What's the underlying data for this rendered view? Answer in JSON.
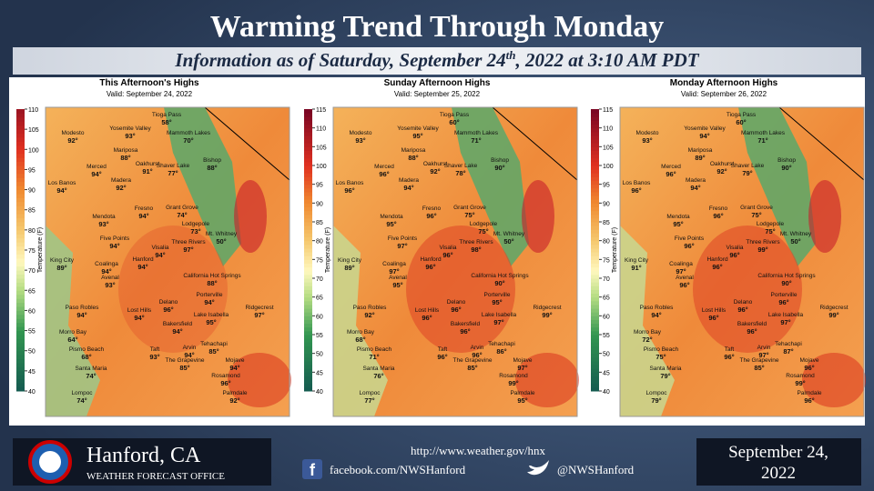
{
  "header": {
    "title": "Warming Trend Through Monday",
    "subtitle": {
      "text": "Information as of Saturday, September 24",
      "superscript": "th",
      "rest": ", 2022 at 3:10 AM PDT"
    }
  },
  "cities": [
    "Tioga Pass",
    "Modesto",
    "Yosemite Valley",
    "Mammoth Lakes",
    "Mariposa",
    "Oakhurst",
    "Shaver Lake",
    "Bishop",
    "Merced",
    "Madera",
    "Los Banos",
    "Fresno",
    "Grant Grove",
    "Mendota",
    "Lodgepole",
    "Mt. Whitney",
    "Five Points",
    "Three Rivers",
    "Visalia",
    "Hanford",
    "King City",
    "Coalinga",
    "Avenal",
    "California Hot Springs",
    "Delano",
    "Porterville",
    "Paso Robles",
    "Lost Hills",
    "Lake Isabella",
    "Ridgecrest",
    "Bakersfield",
    "Morro Bay",
    "Tehachapi",
    "Pismo Beach",
    "Taft",
    "Arvin",
    "Mojave",
    "The Grapevine",
    "Santa Maria",
    "Rosamond",
    "Palmdale",
    "Lompoc"
  ],
  "maps": [
    {
      "title": "This Afternoon's Highs",
      "valid": "Valid: September 24, 2022",
      "colorbar": {
        "label": "Temperature (F)",
        "ticks": [
          110,
          105,
          100,
          95,
          90,
          85,
          80,
          75,
          70,
          65,
          60,
          55,
          50,
          45,
          40
        ]
      },
      "temps": [
        "58°",
        "92°",
        "93°",
        "70°",
        "88°",
        "91°",
        "77°",
        "88°",
        "94°",
        "92°",
        "94°",
        "94°",
        "74°",
        "93°",
        "73°",
        "50°",
        "94°",
        "97°",
        "94°",
        "94°",
        "89°",
        "94°",
        "93°",
        "88°",
        "96°",
        "94°",
        "94°",
        "94°",
        "95°",
        "97°",
        "94°",
        "64°",
        "85°",
        "68°",
        "93°",
        "94°",
        "94°",
        "85°",
        "74°",
        "96°",
        "92°",
        "74°"
      ]
    },
    {
      "title": "Sunday Afternoon Highs",
      "valid": "Valid: September 25, 2022",
      "colorbar": {
        "label": "Temperature (F)",
        "ticks": [
          115,
          110,
          105,
          100,
          95,
          90,
          85,
          80,
          75,
          70,
          65,
          60,
          55,
          50,
          45,
          40
        ]
      },
      "temps": [
        "60°",
        "93°",
        "95°",
        "71°",
        "88°",
        "92°",
        "78°",
        "90°",
        "96°",
        "94°",
        "96°",
        "96°",
        "75°",
        "95°",
        "75°",
        "50°",
        "97°",
        "98°",
        "96°",
        "96°",
        "89°",
        "97°",
        "95°",
        "90°",
        "96°",
        "95°",
        "92°",
        "96°",
        "97°",
        "99°",
        "96°",
        "68°",
        "86°",
        "71°",
        "96°",
        "96°",
        "97°",
        "85°",
        "76°",
        "99°",
        "95°",
        "77°"
      ]
    },
    {
      "title": "Monday Afternoon Highs",
      "valid": "Valid: September 26, 2022",
      "colorbar": {
        "label": "Temperature (F)",
        "ticks": [
          115,
          110,
          105,
          100,
          95,
          90,
          85,
          80,
          75,
          70,
          65,
          60,
          55,
          50,
          45,
          40
        ]
      },
      "temps": [
        "60°",
        "93°",
        "94°",
        "71°",
        "89°",
        "92°",
        "79°",
        "90°",
        "96°",
        "94°",
        "96°",
        "96°",
        "75°",
        "95°",
        "75°",
        "50°",
        "96°",
        "99°",
        "96°",
        "96°",
        "91°",
        "97°",
        "96°",
        "90°",
        "96°",
        "96°",
        "94°",
        "96°",
        "97°",
        "99°",
        "96°",
        "72°",
        "87°",
        "75°",
        "96°",
        "97°",
        "96°",
        "85°",
        "79°",
        "99°",
        "96°",
        "79°"
      ]
    }
  ],
  "footer": {
    "office": "Hanford, CA",
    "office_sub": "WEATHER FORECAST OFFICE",
    "website": "http://www.weather.gov/hnx",
    "facebook": "facebook.com/NWSHanford",
    "twitter": "@NWSHanford",
    "date": [
      "September 24,",
      "2022"
    ]
  }
}
